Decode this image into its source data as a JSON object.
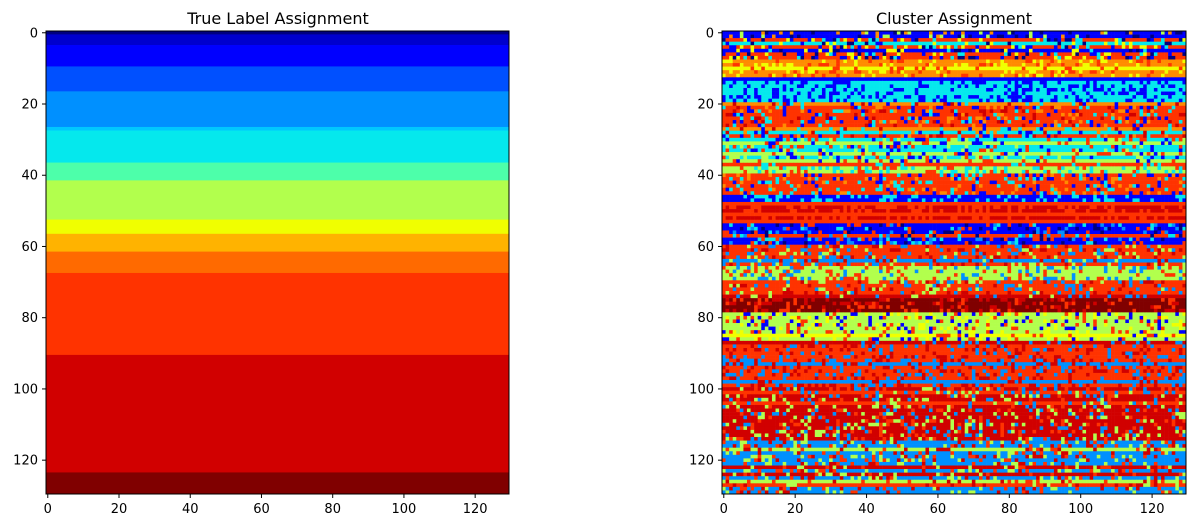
{
  "chart_data": [
    {
      "type": "heatmap",
      "title": "True Label Assignment",
      "colormap": "jet",
      "rows": 130,
      "cols": 130,
      "xlim": [
        -0.5,
        129.5
      ],
      "ylim": [
        129.5,
        -0.5
      ],
      "xticks": [
        0,
        20,
        40,
        60,
        80,
        100,
        120
      ],
      "yticks": [
        0,
        20,
        40,
        60,
        80,
        100,
        120
      ],
      "grid": false,
      "band_colors": [
        "#00007f",
        "#0000cd",
        "#0000ff",
        "#0050ff",
        "#0090ff",
        "#00c8ff",
        "#05e8ed",
        "#4dffaa",
        "#b2ff4d",
        "#f0ff00",
        "#ffb300",
        "#ff6a00",
        "#ff3300",
        "#d10000",
        "#800000"
      ],
      "bands": [
        {
          "color": "#00007f",
          "start": 0,
          "end": 1
        },
        {
          "color": "#0000cd",
          "start": 1,
          "end": 4
        },
        {
          "color": "#0000ff",
          "start": 4,
          "end": 10
        },
        {
          "color": "#0050ff",
          "start": 10,
          "end": 17
        },
        {
          "color": "#0090ff",
          "start": 17,
          "end": 27
        },
        {
          "color": "#00c8ff",
          "start": 27,
          "end": 28
        },
        {
          "color": "#05e8ed",
          "start": 28,
          "end": 37
        },
        {
          "color": "#4dffaa",
          "start": 37,
          "end": 42
        },
        {
          "color": "#b2ff4d",
          "start": 42,
          "end": 53
        },
        {
          "color": "#f0ff00",
          "start": 53,
          "end": 57
        },
        {
          "color": "#ffb300",
          "start": 57,
          "end": 62
        },
        {
          "color": "#ff6a00",
          "start": 62,
          "end": 68
        },
        {
          "color": "#ff3300",
          "start": 68,
          "end": 91
        },
        {
          "color": "#d10000",
          "start": 91,
          "end": 124
        },
        {
          "color": "#800000",
          "start": 124,
          "end": 130
        }
      ]
    },
    {
      "type": "heatmap",
      "title": "Cluster Assignment",
      "colormap": "jet",
      "rows": 130,
      "cols": 130,
      "xlim": [
        -0.5,
        129.5
      ],
      "ylim": [
        129.5,
        -0.5
      ],
      "xticks": [
        0,
        20,
        40,
        60,
        80,
        100,
        120
      ],
      "yticks": [
        0,
        20,
        40,
        60,
        80,
        100,
        120
      ],
      "grid": false,
      "palette": [
        "#00007f",
        "#0000ff",
        "#0090ff",
        "#05e8ed",
        "#b2ff4d",
        "#f0ff00",
        "#ff8c00",
        "#ff3300",
        "#d10000",
        "#800000"
      ],
      "row_bands": [
        {
          "start": 0,
          "end": 2,
          "main": 1,
          "mix": [
            0,
            6,
            4
          ]
        },
        {
          "start": 2,
          "end": 8,
          "main": 7,
          "mix": [
            1,
            3,
            5,
            0
          ]
        },
        {
          "start": 8,
          "end": 13,
          "main": 6,
          "mix": [
            7,
            5
          ]
        },
        {
          "start": 13,
          "end": 20,
          "main": 3,
          "mix": [
            1
          ]
        },
        {
          "start": 20,
          "end": 30,
          "main": 7,
          "mix": [
            8,
            3,
            1,
            6
          ]
        },
        {
          "start": 30,
          "end": 37,
          "main": 3,
          "mix": [
            7,
            1,
            4
          ]
        },
        {
          "start": 37,
          "end": 40,
          "main": 4,
          "mix": [
            3,
            7
          ]
        },
        {
          "start": 40,
          "end": 46,
          "main": 7,
          "mix": [
            6,
            1,
            3
          ]
        },
        {
          "start": 46,
          "end": 48,
          "main": 1,
          "mix": [
            3
          ]
        },
        {
          "start": 48,
          "end": 54,
          "main": 8,
          "mix": [
            7
          ]
        },
        {
          "start": 54,
          "end": 60,
          "main": 1,
          "mix": [
            2,
            3,
            7,
            0
          ]
        },
        {
          "start": 60,
          "end": 66,
          "main": 7,
          "mix": [
            4,
            2,
            8
          ]
        },
        {
          "start": 66,
          "end": 70,
          "main": 4,
          "mix": [
            7,
            2
          ]
        },
        {
          "start": 70,
          "end": 75,
          "main": 7,
          "mix": [
            2,
            4,
            8
          ]
        },
        {
          "start": 75,
          "end": 79,
          "main": 9,
          "mix": [
            7,
            8
          ]
        },
        {
          "start": 79,
          "end": 87,
          "main": 4,
          "mix": [
            5,
            7,
            1
          ]
        },
        {
          "start": 87,
          "end": 100,
          "main": 7,
          "mix": [
            8,
            2
          ]
        },
        {
          "start": 100,
          "end": 115,
          "main": 8,
          "mix": [
            7,
            2,
            4
          ]
        },
        {
          "start": 115,
          "end": 130,
          "main": 2,
          "mix": [
            7,
            4,
            8
          ]
        }
      ]
    }
  ]
}
